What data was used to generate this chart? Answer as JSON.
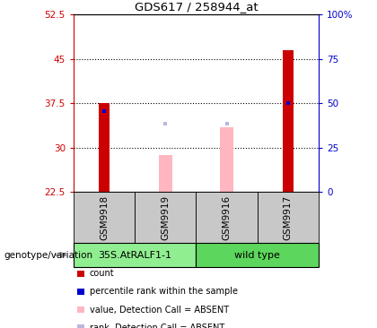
{
  "title": "GDS617 / 258944_at",
  "samples": [
    "GSM9918",
    "GSM9919",
    "GSM9916",
    "GSM9917"
  ],
  "ylim_left": [
    22.5,
    52.5
  ],
  "ylim_right": [
    0,
    100
  ],
  "yticks_left": [
    22.5,
    30,
    37.5,
    45,
    52.5
  ],
  "yticks_right": [
    0,
    25,
    50,
    75,
    100
  ],
  "ytick_labels_left": [
    "22.5",
    "30",
    "37.5",
    "45",
    "52.5"
  ],
  "ytick_labels_right": [
    "0",
    "25",
    "50",
    "75",
    "100%"
  ],
  "hlines": [
    30,
    37.5,
    45
  ],
  "bar_bottom": 22.5,
  "red_bars": {
    "GSM9918": 37.5,
    "GSM9917": 46.5
  },
  "blue_markers": {
    "GSM9918": 36.2,
    "GSM9917": 37.5
  },
  "pink_bars": {
    "GSM9919": 28.8,
    "GSM9916": 33.5
  },
  "lavender_markers": {
    "GSM9919": 34.0,
    "GSM9916": 34.0
  },
  "group1_label": "35S.AtRALF1-1",
  "group2_label": "wild type",
  "group_label_text": "genotype/variation",
  "group1_color": "#90EE90",
  "group2_color": "#5CD65C",
  "sample_box_color": "#C8C8C8",
  "red_color": "#CC0000",
  "blue_color": "#0000CC",
  "pink_color": "#FFB6C1",
  "lavender_color": "#B8B8E0",
  "legend_items": [
    {
      "label": "count",
      "color": "#CC0000"
    },
    {
      "label": "percentile rank within the sample",
      "color": "#0000CC"
    },
    {
      "label": "value, Detection Call = ABSENT",
      "color": "#FFB6C1"
    },
    {
      "label": "rank, Detection Call = ABSENT",
      "color": "#B8B8E0"
    }
  ],
  "bar_width": 0.18
}
